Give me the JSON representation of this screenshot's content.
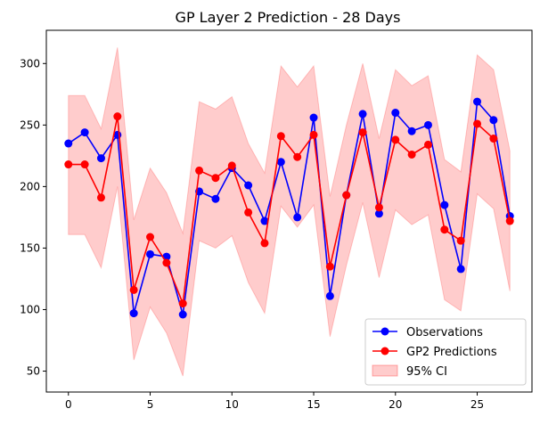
{
  "chart_data": {
    "type": "line",
    "title": "GP Layer 2 Prediction - 28 Days",
    "xlabel": "",
    "ylabel": "",
    "xlim": [
      -1.35,
      28.35
    ],
    "ylim": [
      33,
      327
    ],
    "x_ticks": [
      0,
      5,
      10,
      15,
      20,
      25
    ],
    "y_ticks": [
      50,
      100,
      150,
      200,
      250,
      300
    ],
    "grid": false,
    "legend_position": "lower-right",
    "x": [
      0,
      1,
      2,
      3,
      4,
      5,
      6,
      7,
      8,
      9,
      10,
      11,
      12,
      13,
      14,
      15,
      16,
      17,
      18,
      19,
      20,
      21,
      22,
      23,
      24,
      25,
      26,
      27
    ],
    "series": [
      {
        "name": "Observations",
        "color": "#0000ff",
        "values": [
          235,
          244,
          223,
          242,
          97,
          145,
          143,
          96,
          196,
          190,
          215,
          201,
          172,
          220,
          175,
          256,
          111,
          193,
          259,
          178,
          260,
          245,
          250,
          185,
          133,
          269,
          254,
          176
        ]
      },
      {
        "name": "GP2 Predictions",
        "color": "#ff0000",
        "values": [
          218,
          218,
          191,
          257,
          116,
          159,
          138,
          105,
          213,
          207,
          217,
          179,
          154,
          241,
          224,
          242,
          135,
          193,
          244,
          183,
          238,
          226,
          234,
          165,
          156,
          251,
          239,
          172
        ]
      }
    ],
    "ci": {
      "name": "95% CI",
      "color": "#ff0000",
      "opacity": 0.2,
      "lower": [
        161,
        161,
        134,
        200,
        59,
        102,
        81,
        46,
        156,
        150,
        160,
        122,
        97,
        184,
        167,
        185,
        78,
        136,
        187,
        126,
        181,
        169,
        177,
        108,
        99,
        194,
        182,
        115
      ],
      "upper": [
        274,
        274,
        247,
        313,
        173,
        215,
        195,
        162,
        269,
        263,
        273,
        235,
        211,
        298,
        281,
        298,
        192,
        250,
        300,
        239,
        295,
        282,
        290,
        222,
        212,
        307,
        295,
        229
      ]
    }
  }
}
